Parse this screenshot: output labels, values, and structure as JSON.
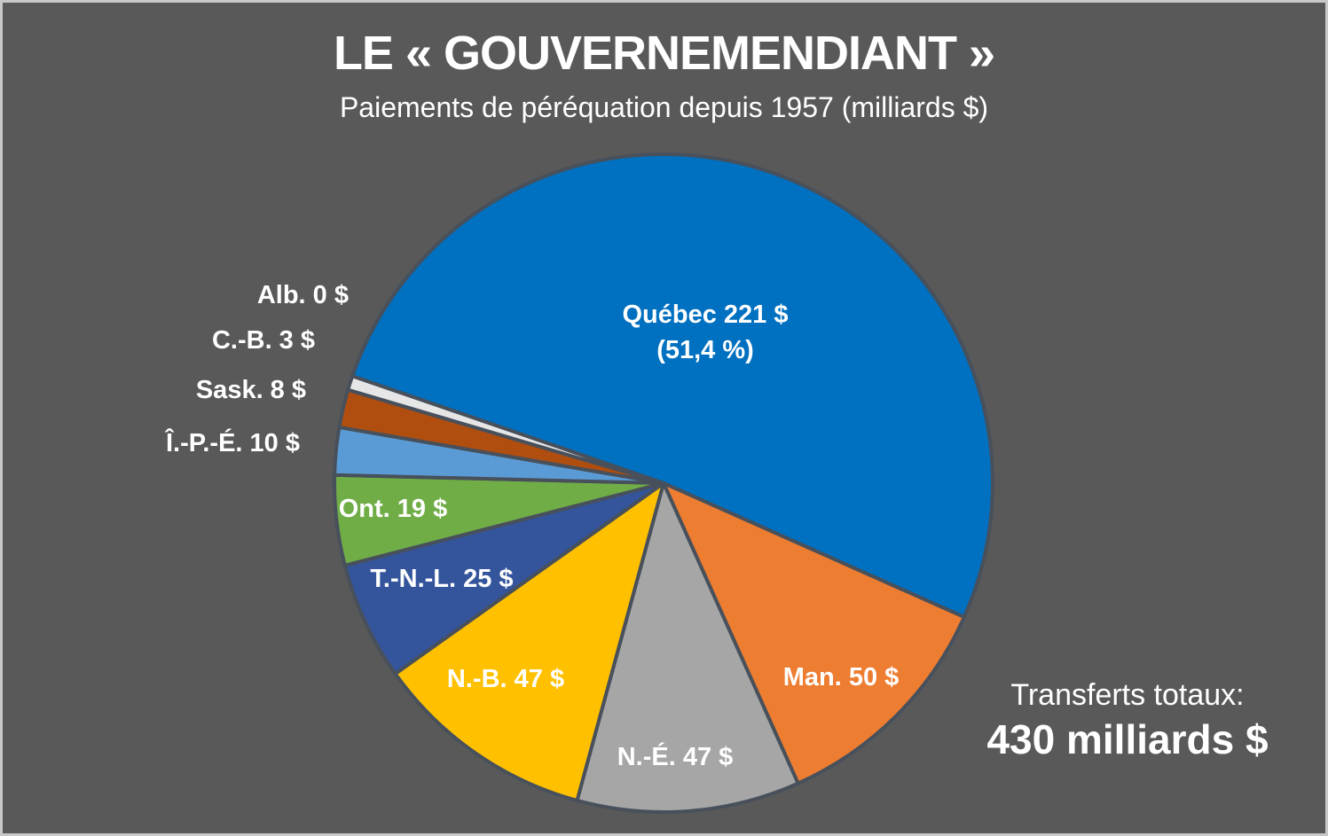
{
  "page": {
    "background_color": "#595959",
    "frame_border_color": "#C8C8C8"
  },
  "header": {
    "title": "LE « GOUVERNEMENDIANT »",
    "subtitle": "Paiements de péréquation depuis 1957 (milliards $)"
  },
  "totals": {
    "label": "Transferts totaux:",
    "value": "430 milliards $"
  },
  "chart_data": {
    "type": "pie",
    "title": "LE « GOUVERNEMENDIANT »",
    "subtitle": "Paiements de péréquation depuis 1957 (milliards $)",
    "unit": "milliards $",
    "total": 430,
    "rotation_clockwise_from_top_deg": 289,
    "slice_border_color": "#47505B",
    "legend": "none",
    "slices": [
      {
        "name": "Québec",
        "value": 221,
        "percent_label": "(51,4 %)",
        "color": "#0070C0",
        "label": "Québec 221 $",
        "label_position": "inside"
      },
      {
        "name": "Man.",
        "value": 50,
        "color": "#ED7D31",
        "label": "Man. 50 $",
        "label_position": "inside"
      },
      {
        "name": "N.-É.",
        "value": 47,
        "color": "#A6A6A6",
        "label": "N.-É. 47 $",
        "label_position": "inside"
      },
      {
        "name": "N.-B.",
        "value": 47,
        "color": "#FFC000",
        "label": "N.-B. 47 $",
        "label_position": "inside"
      },
      {
        "name": "T.-N.-L.",
        "value": 25,
        "color": "#34559C",
        "label": "T.-N.-L. 25 $",
        "label_position": "inside"
      },
      {
        "name": "Ont.",
        "value": 19,
        "color": "#70AD47",
        "label": "Ont. 19 $",
        "label_position": "inside"
      },
      {
        "name": "Î.-P.-É.",
        "value": 10,
        "color": "#5B9BD5",
        "label": "Î.-P.-É. 10 $",
        "label_position": "outside"
      },
      {
        "name": "Sask.",
        "value": 8,
        "color": "#B04E10",
        "label": "Sask. 8 $",
        "label_position": "outside"
      },
      {
        "name": "C.-B.",
        "value": 3,
        "color": "#E7E6E6",
        "label": "C.-B. 3 $",
        "label_position": "outside"
      },
      {
        "name": "Alb.",
        "value": 0,
        "color": "#E7E6E6",
        "label": "Alb. 0 $",
        "label_position": "outside"
      }
    ]
  }
}
